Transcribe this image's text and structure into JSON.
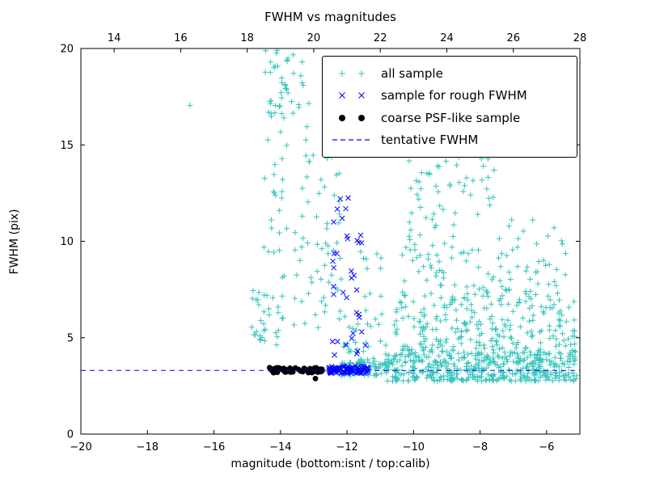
{
  "chart_data": {
    "type": "scatter",
    "title": "FWHM vs magnitudes",
    "xlabel": "magnitude (bottom:isnt / top:calib)",
    "ylabel": "FWHM (pix)",
    "xlim": [
      -20,
      -5
    ],
    "ylim": [
      0,
      20
    ],
    "grid": false,
    "legend_position": "upper right",
    "xticks_bottom": {
      "values": [
        -20,
        -18,
        -16,
        -14,
        -12,
        -10,
        -8,
        -6
      ],
      "labels": [
        "−20",
        "−18",
        "−16",
        "−14",
        "−12",
        "−10",
        "−8",
        "−6"
      ]
    },
    "xticks_top": {
      "values": [
        14,
        16,
        18,
        20,
        22,
        24,
        26,
        28
      ],
      "labels": [
        "14",
        "16",
        "18",
        "20",
        "22",
        "24",
        "26",
        "28"
      ],
      "offset": 33,
      "note": "top calib magnitude = bottom isnt magnitude + 33"
    },
    "yticks": {
      "values": [
        0,
        5,
        10,
        15,
        20
      ],
      "labels": [
        "0",
        "5",
        "10",
        "15",
        "20"
      ]
    },
    "tentative_fwhm": 3.3,
    "colors": {
      "all_sample": "#35c4bc",
      "rough_sample": "#0000ff",
      "coarse_sample": "#000000",
      "tentative_line": "#0000ff",
      "axis": "#000000",
      "background": "#ffffff"
    },
    "series": [
      {
        "name": "all sample",
        "marker": "plus",
        "color_key": "all_sample",
        "points": [
          [
            -16.72,
            17.05
          ],
          [
            -13.35,
            19.3
          ],
          [
            -14.1,
            19.9
          ],
          [
            -9.55,
            15.2
          ],
          [
            -8.35,
            14.9
          ],
          [
            -7.9,
            13.9
          ]
        ],
        "clusters": [
          {
            "n": 16,
            "x": [
              -14.9,
              -14.35
            ],
            "y": [
              4.6,
              7.6
            ],
            "seed": 1
          },
          {
            "n": 34,
            "x": [
              -14.55,
              -13.6
            ],
            "y": [
              16.3,
              20.0
            ],
            "seed": 2
          },
          {
            "n": 26,
            "x": [
              -14.5,
              -13.75
            ],
            "y": [
              7.5,
              16.5
            ],
            "seed": 3
          },
          {
            "n": 18,
            "x": [
              -14.7,
              -13.8
            ],
            "y": [
              4.2,
              7.5
            ],
            "seed": 4
          },
          {
            "n": 26,
            "x": [
              -13.6,
              -12.85
            ],
            "y": [
              5.2,
              14.5
            ],
            "seed": 5
          },
          {
            "n": 8,
            "x": [
              -13.5,
              -13.0
            ],
            "y": [
              14.5,
              19.5
            ],
            "seed": 6
          },
          {
            "n": 30,
            "x": [
              -12.95,
              -12.15
            ],
            "y": [
              4.4,
              13.2
            ],
            "seed": 7
          },
          {
            "n": 6,
            "x": [
              -12.6,
              -12.2
            ],
            "y": [
              13.2,
              15.6
            ],
            "seed": 8
          },
          {
            "n": 70,
            "x": [
              -12.2,
              -10.8
            ],
            "y": [
              3.0,
              3.8
            ],
            "seed": 9
          },
          {
            "n": 30,
            "x": [
              -12.1,
              -10.8
            ],
            "y": [
              3.8,
              6.5
            ],
            "seed": 10,
            "ypow": 1.6
          },
          {
            "n": 430,
            "x": [
              -10.8,
              -5.1
            ],
            "y": [
              2.75,
              4.3
            ],
            "seed": 11,
            "ypow": 1.3
          },
          {
            "n": 230,
            "x": [
              -10.6,
              -5.15
            ],
            "y": [
              4.3,
              7.2
            ],
            "seed": 12,
            "ypow": 1.2
          },
          {
            "n": 110,
            "x": [
              -10.4,
              -5.4
            ],
            "y": [
              7.2,
              11.2
            ],
            "seed": 13,
            "ypow": 1.2
          },
          {
            "n": 55,
            "x": [
              -10.2,
              -7.5
            ],
            "y": [
              11.2,
              15.3
            ],
            "seed": 14
          },
          {
            "n": 10,
            "x": [
              -11.6,
              -10.5
            ],
            "y": [
              6.5,
              9.5
            ],
            "seed": 15
          },
          {
            "n": 4,
            "x": [
              -8.2,
              -7.0
            ],
            "y": [
              15.5,
              17.0
            ],
            "seed": 16
          }
        ]
      },
      {
        "name": "sample for rough FWHM",
        "marker": "cross",
        "color_key": "rough_sample",
        "points": [
          [
            -11.45,
            4.6
          ],
          [
            -12.2,
            12.2
          ],
          [
            -12.4,
            11.0
          ]
        ],
        "clusters": [
          {
            "n": 85,
            "x": [
              -12.55,
              -11.35
            ],
            "y": [
              3.15,
              3.55
            ],
            "seed": 21
          },
          {
            "n": 24,
            "x": [
              -12.5,
              -11.55
            ],
            "y": [
              4.0,
              9.5
            ],
            "seed": 22
          },
          {
            "n": 6,
            "x": [
              -12.35,
              -11.85
            ],
            "y": [
              9.8,
              12.4
            ],
            "seed": 23
          },
          {
            "n": 4,
            "x": [
              -11.75,
              -11.5
            ],
            "y": [
              9.9,
              10.6
            ],
            "seed": 24
          }
        ]
      },
      {
        "name": "coarse PSF-like sample",
        "marker": "circle",
        "color_key": "coarse_sample",
        "points": [
          [
            -12.95,
            2.88
          ]
        ],
        "clusters": [
          {
            "n": 55,
            "x": [
              -14.35,
              -12.75
            ],
            "y": [
              3.18,
              3.45
            ],
            "seed": 31
          }
        ]
      },
      {
        "name": "tentative FWHM",
        "marker": "dashed-line",
        "color_key": "tentative_line",
        "y": 3.3
      }
    ]
  }
}
